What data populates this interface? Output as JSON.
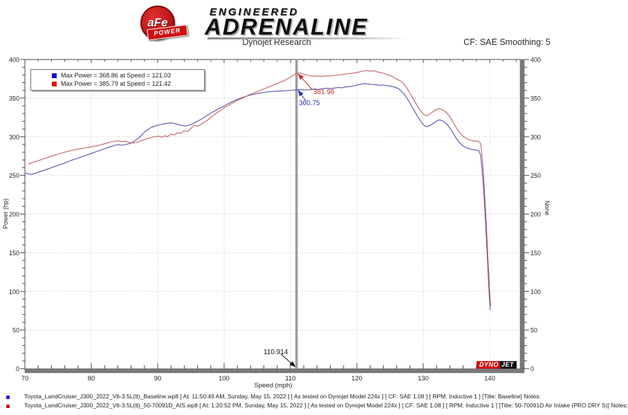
{
  "logo": {
    "badge_text": "aFe",
    "banner_text": "POWER",
    "engineered": "ENGINEERED",
    "adrenaline": "ADRENALINE"
  },
  "header": {
    "title": "Dynojet Research",
    "smoothing": "CF: SAE Smoothing: 5"
  },
  "watermark": {
    "dyno": "DYNO",
    "jet": "JET"
  },
  "chart_data": {
    "type": "line",
    "title": "Dynojet Research",
    "xlabel": "Speed (mph)",
    "ylabel_left": "Power (hp)",
    "ylabel_right": "None",
    "xlim": [
      70,
      144.6
    ],
    "ylim": [
      0,
      400
    ],
    "x_major_ticks": [
      70,
      80,
      90,
      100,
      110,
      120,
      130,
      140
    ],
    "x_minor_step": 2,
    "y_major_ticks": [
      0,
      50,
      100,
      150,
      200,
      250,
      300,
      350,
      400
    ],
    "y_minor_step": 10,
    "grid": "dotted-at-major-ticks",
    "legend_position": "top-left",
    "cursor": {
      "x": 110.914,
      "x_label": "110.914",
      "red": {
        "value": 381.96,
        "label": "381.96"
      },
      "blue": {
        "value": 360.75,
        "label": "360.75"
      }
    },
    "series": [
      {
        "name": "Baseline",
        "color": "#5050aa",
        "legend_color": "#1313d6",
        "max_label": "Max Power = 368.86 at Speed = 121.03",
        "max_power": 368.86,
        "max_speed": 121.03,
        "points": [
          [
            70,
            253
          ],
          [
            70.5,
            252
          ],
          [
            71,
            251.5
          ],
          [
            71.5,
            252.5
          ],
          [
            72,
            254
          ],
          [
            73,
            257
          ],
          [
            74,
            260
          ],
          [
            75,
            263
          ],
          [
            76,
            266
          ],
          [
            77,
            269.5
          ],
          [
            78,
            272.5
          ],
          [
            79,
            275.5
          ],
          [
            80,
            278.5
          ],
          [
            81,
            281.5
          ],
          [
            82,
            284.5
          ],
          [
            83,
            287.5
          ],
          [
            84,
            290
          ],
          [
            84.6,
            289
          ],
          [
            85.2,
            290
          ],
          [
            85.9,
            291.5
          ],
          [
            86.5,
            294.5
          ],
          [
            87.2,
            299
          ],
          [
            88,
            306
          ],
          [
            89,
            312
          ],
          [
            90,
            315
          ],
          [
            91,
            317
          ],
          [
            92,
            318
          ],
          [
            92.6,
            317
          ],
          [
            93.2,
            315.5
          ],
          [
            94,
            314
          ],
          [
            94.6,
            314.5
          ],
          [
            95.2,
            316.5
          ],
          [
            96,
            320
          ],
          [
            97,
            325
          ],
          [
            98,
            330.5
          ],
          [
            99,
            335.5
          ],
          [
            100,
            340
          ],
          [
            101,
            344.5
          ],
          [
            102,
            348.5
          ],
          [
            103,
            351.5
          ],
          [
            104,
            354
          ],
          [
            105,
            356
          ],
          [
            106,
            357.5
          ],
          [
            107,
            358.5
          ],
          [
            108,
            359
          ],
          [
            109,
            359.5
          ],
          [
            110,
            360.2
          ],
          [
            110.9,
            360.7
          ],
          [
            111.5,
            361
          ],
          [
            112.2,
            360.5
          ],
          [
            113,
            361.2
          ],
          [
            113.6,
            361.8
          ],
          [
            114.2,
            361.2
          ],
          [
            114.8,
            362.2
          ],
          [
            115.4,
            362.8
          ],
          [
            116,
            362.2
          ],
          [
            116.6,
            363
          ],
          [
            117.2,
            363.8
          ],
          [
            117.8,
            363.4
          ],
          [
            118.4,
            364.6
          ],
          [
            119,
            365
          ],
          [
            119.6,
            366
          ],
          [
            120.2,
            367.2
          ],
          [
            121,
            368.86
          ],
          [
            121.6,
            368.4
          ],
          [
            122.2,
            367.8
          ],
          [
            122.8,
            367.4
          ],
          [
            123.4,
            366.6
          ],
          [
            124,
            366.9
          ],
          [
            124.6,
            366.1
          ],
          [
            125.2,
            365.2
          ],
          [
            125.8,
            364
          ],
          [
            126.4,
            361.5
          ],
          [
            127,
            356.5
          ],
          [
            127.5,
            350.5
          ],
          [
            128,
            343.5
          ],
          [
            128.5,
            336
          ],
          [
            129,
            328.5
          ],
          [
            129.5,
            321.5
          ],
          [
            130,
            315.5
          ],
          [
            130.4,
            313.2
          ],
          [
            130.8,
            313.8
          ],
          [
            131.2,
            315.5
          ],
          [
            131.6,
            317.8
          ],
          [
            132,
            320.3
          ],
          [
            132.3,
            321.8
          ],
          [
            132.7,
            321.3
          ],
          [
            133.1,
            319.8
          ],
          [
            133.5,
            317
          ],
          [
            134,
            311.5
          ],
          [
            134.5,
            304.5
          ],
          [
            135,
            297.5
          ],
          [
            135.5,
            292
          ],
          [
            136,
            288
          ],
          [
            136.5,
            285.8
          ],
          [
            137,
            284.3
          ],
          [
            137.5,
            283.3
          ],
          [
            138,
            282.8
          ],
          [
            138.4,
            281.8
          ],
          [
            138.6,
            277
          ],
          [
            138.8,
            263
          ],
          [
            139,
            243
          ],
          [
            139.2,
            216
          ],
          [
            139.4,
            186
          ],
          [
            139.6,
            152
          ],
          [
            139.8,
            117
          ],
          [
            139.95,
            93
          ],
          [
            140.05,
            79
          ],
          [
            140.1,
            76
          ]
        ]
      },
      {
        "name": "50-70091D Air Intake (PRO DRY S)",
        "color": "#c25e5e",
        "legend_color": "#e01313",
        "max_label": "Max Power = 385.79 at Speed = 121.42",
        "max_power": 385.79,
        "max_speed": 121.42,
        "points": [
          [
            70.5,
            264.5
          ],
          [
            71,
            266
          ],
          [
            71.5,
            267.8
          ],
          [
            72,
            269
          ],
          [
            73,
            272
          ],
          [
            74,
            275
          ],
          [
            75,
            277.5
          ],
          [
            76,
            280
          ],
          [
            77,
            282.3
          ],
          [
            78,
            284
          ],
          [
            79,
            285.5
          ],
          [
            80,
            287
          ],
          [
            81,
            288.5
          ],
          [
            82,
            291
          ],
          [
            83,
            293.5
          ],
          [
            84,
            294.8
          ],
          [
            84.6,
            293.8
          ],
          [
            85.2,
            294.3
          ],
          [
            85.9,
            292.3
          ],
          [
            86.5,
            292
          ],
          [
            87.2,
            294
          ],
          [
            88,
            296.5
          ],
          [
            89,
            299
          ],
          [
            89.6,
            300.2
          ],
          [
            90.2,
            300.8
          ],
          [
            90.6,
            299.3
          ],
          [
            91,
            301.3
          ],
          [
            91.5,
            300.3
          ],
          [
            92,
            303.3
          ],
          [
            92.5,
            302.3
          ],
          [
            93,
            305.3
          ],
          [
            93.5,
            304.3
          ],
          [
            94,
            307.8
          ],
          [
            94.5,
            306.8
          ],
          [
            95,
            310.8
          ],
          [
            95.5,
            314.8
          ],
          [
            96,
            313.8
          ],
          [
            96.5,
            315.8
          ],
          [
            97,
            318.8
          ],
          [
            97.6,
            322
          ],
          [
            98.2,
            326.5
          ],
          [
            99,
            331.5
          ],
          [
            100,
            337.3
          ],
          [
            101,
            342.3
          ],
          [
            102,
            347
          ],
          [
            103,
            351
          ],
          [
            104,
            355
          ],
          [
            105,
            358.5
          ],
          [
            106,
            362
          ],
          [
            107,
            365.5
          ],
          [
            108,
            369
          ],
          [
            109,
            372.5
          ],
          [
            110,
            377
          ],
          [
            110.5,
            380
          ],
          [
            110.9,
            382
          ],
          [
            111.3,
            382.7
          ],
          [
            111.8,
            381.6
          ],
          [
            112.3,
            380.1
          ],
          [
            113,
            379
          ],
          [
            113.6,
            378.3
          ],
          [
            114.2,
            378.7
          ],
          [
            114.8,
            378.2
          ],
          [
            115.4,
            378.9
          ],
          [
            116,
            378.5
          ],
          [
            116.6,
            379.4
          ],
          [
            117.2,
            379.9
          ],
          [
            117.8,
            380.5
          ],
          [
            118.4,
            381.2
          ],
          [
            119,
            381.9
          ],
          [
            119.6,
            382.5
          ],
          [
            120.2,
            383.5
          ],
          [
            120.8,
            384.8
          ],
          [
            121.42,
            385.79
          ],
          [
            122,
            385
          ],
          [
            122.5,
            385.4
          ],
          [
            123,
            384.2
          ],
          [
            123.5,
            383.2
          ],
          [
            124,
            382.2
          ],
          [
            124.5,
            380.7
          ],
          [
            125,
            379.2
          ],
          [
            125.5,
            377.2
          ],
          [
            126,
            374.7
          ],
          [
            126.6,
            372
          ],
          [
            127,
            369.2
          ],
          [
            127.5,
            363.7
          ],
          [
            128,
            356.2
          ],
          [
            128.5,
            348.7
          ],
          [
            129,
            341.7
          ],
          [
            129.5,
            334.7
          ],
          [
            130,
            329.5
          ],
          [
            130.4,
            327.3
          ],
          [
            130.8,
            328.3
          ],
          [
            131.2,
            330.8
          ],
          [
            131.6,
            333.3
          ],
          [
            132,
            335.3
          ],
          [
            132.4,
            336.3
          ],
          [
            132.8,
            335.3
          ],
          [
            133.2,
            333.3
          ],
          [
            133.6,
            330.3
          ],
          [
            134,
            325.8
          ],
          [
            134.5,
            318.8
          ],
          [
            135,
            311.3
          ],
          [
            135.5,
            305.3
          ],
          [
            136,
            300.8
          ],
          [
            136.5,
            297.8
          ],
          [
            137,
            295.8
          ],
          [
            137.5,
            294.8
          ],
          [
            138,
            294.3
          ],
          [
            138.5,
            293.3
          ],
          [
            138.7,
            289
          ],
          [
            138.9,
            271
          ],
          [
            139.1,
            247
          ],
          [
            139.3,
            219
          ],
          [
            139.5,
            187
          ],
          [
            139.7,
            151
          ],
          [
            139.9,
            116
          ],
          [
            140.05,
            93
          ],
          [
            140.15,
            81
          ]
        ]
      }
    ]
  },
  "footer": {
    "lines": [
      {
        "bullet_color": "#2525c0",
        "text": "Toyota_LandCruiser_J300_2022_V6-3.5L(tt)_Baseline.wp8 [ At: 11:50:49 AM, Sunday, May 15, 2022 ] [ As tested on Dynojet Model 224x ] [ CF: SAE 1.08 ] [ RPM: Inductive 1 ] [Title: Baseline]  Notes:"
      },
      {
        "bullet_color": "#c02020",
        "text": "Toyota_LandCruiser_J300_2022_V6-3.5L(tt)_50-70091D_AIS.wp8 [ At: 1:20:52 PM, Sunday, May 15, 2022 ] [ As tested on Dynojet Model 224x ] [ CF: SAE 1.08 ] [ RPM: Inductive 1 ] [Title: 50-70091D Air Intake (PRO DRY S)]  Notes:"
      }
    ]
  }
}
